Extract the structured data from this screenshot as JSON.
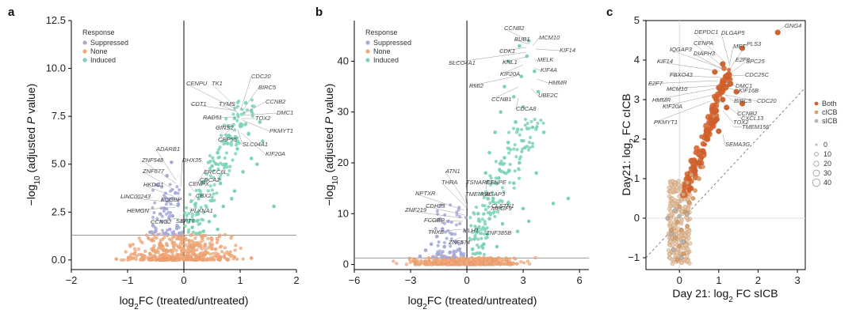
{
  "chart_data": [
    {
      "panel": "a",
      "type": "scatter",
      "xlabel": "log2FC (treated/untreated)",
      "ylabel": "−log10 (adjusted P value)",
      "xticks": [
        "−2",
        "−1",
        "0",
        "1",
        "2"
      ],
      "yticks": [
        "0.0",
        "2.5",
        "5.0",
        "7.5",
        "10.0",
        "12.5"
      ],
      "xlim": [
        -2,
        2
      ],
      "ylim": [
        -0.5,
        12.5
      ],
      "threshold_y": 1.3,
      "legend": {
        "title": "Response",
        "items": [
          {
            "label": "Suppressed",
            "color": "#a7a9d6"
          },
          {
            "label": "None",
            "color": "#f0a878"
          },
          {
            "label": "Induced",
            "color": "#7dd3b5"
          }
        ]
      },
      "series": [
        {
          "name": "Suppressed",
          "color": "#a7a9d6",
          "points": [
            [
              -0.22,
              5.1
            ],
            [
              -0.3,
              4.4
            ],
            [
              -0.45,
              3.9
            ],
            [
              -0.15,
              3.5
            ],
            [
              -0.28,
              3.1
            ],
            [
              -0.35,
              2.7
            ],
            [
              -0.2,
              2.3
            ],
            [
              -0.4,
              2.0
            ],
            [
              -0.12,
              1.8
            ],
            [
              -0.25,
              1.6
            ],
            [
              -0.5,
              1.5
            ],
            [
              -0.32,
              1.4
            ],
            [
              -0.18,
              1.35
            ],
            [
              -0.6,
              1.45
            ],
            [
              -0.08,
              1.4
            ],
            [
              -0.42,
              2.4
            ],
            [
              -0.1,
              2.9
            ],
            [
              -0.55,
              1.8
            ]
          ]
        },
        {
          "name": "Induced",
          "color": "#7dd3b5",
          "points": [
            [
              1.1,
              8.2
            ],
            [
              1.2,
              7.8
            ],
            [
              0.9,
              7.4
            ],
            [
              1.0,
              7.0
            ],
            [
              1.35,
              7.2
            ],
            [
              0.8,
              6.5
            ],
            [
              1.15,
              6.6
            ],
            [
              1.4,
              6.2
            ],
            [
              0.6,
              5.6
            ],
            [
              0.95,
              5.8
            ],
            [
              1.2,
              5.3
            ],
            [
              0.5,
              4.9
            ],
            [
              0.75,
              5.0
            ],
            [
              1.05,
              4.6
            ],
            [
              0.4,
              4.2
            ],
            [
              0.65,
              4.0
            ],
            [
              0.9,
              3.6
            ],
            [
              0.3,
              3.4
            ],
            [
              0.5,
              3.1
            ],
            [
              0.7,
              2.8
            ],
            [
              0.25,
              2.4
            ],
            [
              0.45,
              2.0
            ],
            [
              0.15,
              1.7
            ],
            [
              0.35,
              1.5
            ],
            [
              0.6,
              1.6
            ],
            [
              1.6,
              2.8
            ],
            [
              0.2,
              2.9
            ],
            [
              0.85,
              3.2
            ],
            [
              1.3,
              5.0
            ],
            [
              0.55,
              2.3
            ]
          ]
        },
        {
          "name": "None",
          "color": "#f0a878",
          "points": [
            [
              -0.6,
              0.3
            ],
            [
              -0.4,
              0.6
            ],
            [
              -0.2,
              0.9
            ],
            [
              0.0,
              0.5
            ],
            [
              0.2,
              0.8
            ],
            [
              0.4,
              0.4
            ],
            [
              0.6,
              0.2
            ],
            [
              -0.9,
              0.1
            ],
            [
              0.9,
              0.15
            ],
            [
              -0.3,
              0.2
            ],
            [
              0.1,
              1.0
            ],
            [
              -0.1,
              0.7
            ],
            [
              0.3,
              0.3
            ],
            [
              -0.5,
              0.4
            ],
            [
              0.5,
              0.6
            ],
            [
              0.8,
              0.3
            ],
            [
              -0.7,
              0.2
            ],
            [
              0.0,
              0.1
            ],
            [
              1.2,
              0.1
            ],
            [
              -1.2,
              0.05
            ]
          ]
        }
      ],
      "labels": {
        "suppressed": [
          "ADARB1",
          "ZNF548",
          "ZNF677",
          "HKDC1",
          "LINC00243",
          "HEMGN",
          "CCNG2",
          "FCGBP",
          "DHX35",
          "SEPT6"
        ],
        "induced": [
          "CENPU",
          "TK1",
          "CDC20",
          "BIRC5",
          "CDT1",
          "TYMS",
          "CCNB2",
          "DMC1",
          "RAD51",
          "TOX2",
          "PKMYT1",
          "GINS2",
          "CEP55",
          "SLC04A1",
          "KIF20A",
          "ERCC6L",
          "CBX2",
          "CENPX",
          "PLXNA1",
          "CDCA2"
        ]
      }
    },
    {
      "panel": "b",
      "type": "scatter",
      "xlabel": "log2FC (treated/untreated)",
      "ylabel": "−log10 (adjusted P value)",
      "xticks": [
        "−6",
        "−3",
        "0",
        "3",
        "6"
      ],
      "yticks": [
        "0",
        "10",
        "20",
        "30",
        "40"
      ],
      "xlim": [
        -6,
        6.5
      ],
      "ylim": [
        -1,
        48
      ],
      "threshold_y": 1.3,
      "legend": {
        "title": "Response",
        "items": [
          {
            "label": "Suppressed",
            "color": "#a7a9d6"
          },
          {
            "label": "None",
            "color": "#f0a878"
          },
          {
            "label": "Induced",
            "color": "#7dd3b5"
          }
        ]
      },
      "series": [
        {
          "name": "Suppressed",
          "color": "#a7a9d6",
          "points": [
            [
              -1.0,
              8.5
            ],
            [
              -1.3,
              7.0
            ],
            [
              -1.6,
              5.5
            ],
            [
              -0.8,
              6.0
            ],
            [
              -1.9,
              4.0
            ],
            [
              -1.2,
              3.5
            ],
            [
              -0.6,
              4.5
            ],
            [
              -2.2,
              2.8
            ],
            [
              -0.9,
              2.4
            ],
            [
              -1.5,
              2.0
            ],
            [
              -0.4,
              3.0
            ],
            [
              -2.5,
              1.6
            ],
            [
              -0.7,
              1.8
            ],
            [
              -1.8,
              1.5
            ],
            [
              -1.1,
              1.4
            ],
            [
              -0.3,
              2.0
            ]
          ]
        },
        {
          "name": "Induced",
          "color": "#7dd3b5",
          "points": [
            [
              3.3,
              44
            ],
            [
              2.8,
              43
            ],
            [
              3.2,
              41
            ],
            [
              2.2,
              40
            ],
            [
              3.6,
              38
            ],
            [
              2.9,
              37
            ],
            [
              2.0,
              35
            ],
            [
              3.8,
              34
            ],
            [
              2.5,
              33
            ],
            [
              3.0,
              31
            ],
            [
              1.8,
              30
            ],
            [
              2.6,
              28
            ],
            [
              3.5,
              27
            ],
            [
              1.5,
              26
            ],
            [
              2.2,
              24
            ],
            [
              3.1,
              23
            ],
            [
              1.2,
              22
            ],
            [
              2.0,
              21
            ],
            [
              2.8,
              20
            ],
            [
              1.0,
              18
            ],
            [
              1.7,
              17
            ],
            [
              2.5,
              16
            ],
            [
              3.7,
              18
            ],
            [
              0.8,
              14
            ],
            [
              1.4,
              13
            ],
            [
              2.2,
              12
            ],
            [
              3.0,
              11
            ],
            [
              0.6,
              10
            ],
            [
              1.2,
              9
            ],
            [
              1.9,
              8
            ],
            [
              0.5,
              7
            ],
            [
              1.1,
              6
            ],
            [
              2.7,
              6.5
            ],
            [
              0.4,
              5
            ],
            [
              0.9,
              4
            ],
            [
              1.6,
              3.5
            ],
            [
              0.3,
              3
            ],
            [
              0.7,
              2.2
            ],
            [
              4.6,
              12
            ],
            [
              5.4,
              13
            ],
            [
              4.1,
              26
            ],
            [
              3.3,
              8.5
            ]
          ]
        },
        {
          "name": "None",
          "color": "#f0a878",
          "points": [
            [
              -1.5,
              0.4
            ],
            [
              -1.0,
              0.8
            ],
            [
              -0.5,
              1.0
            ],
            [
              0.0,
              0.6
            ],
            [
              0.5,
              0.9
            ],
            [
              1.0,
              0.4
            ],
            [
              1.5,
              0.2
            ],
            [
              -2.0,
              0.1
            ],
            [
              2.0,
              0.1
            ],
            [
              -0.8,
              0.3
            ],
            [
              0.3,
              1.2
            ],
            [
              -0.3,
              0.2
            ],
            [
              0.8,
              1.1
            ],
            [
              -1.2,
              0.6
            ],
            [
              1.2,
              0.7
            ],
            [
              0.0,
              0.05
            ],
            [
              -0.2,
              1.1
            ],
            [
              0.6,
              0.3
            ]
          ]
        }
      ],
      "labels": {
        "suppressed": [
          "ATN1",
          "THRA",
          "TSNARE1",
          "NPTXR",
          "TMEM8B",
          "CDH23",
          "ZNF219",
          "FCGBP",
          "TNXB",
          "ZNF574",
          "MLH1"
        ],
        "induced": [
          "CCNB2",
          "BUB1",
          "MCM10",
          "CDK1",
          "KIF14",
          "SLCO4A1",
          "KNL1",
          "MELK",
          "KIF20A",
          "KIF4A",
          "RMI2",
          "HMMR",
          "CCNB1",
          "UBE2C",
          "CDCA8",
          "AGAP3",
          "CENPE",
          "MEGF9",
          "CLSTN1",
          "ZNF385B"
        ]
      }
    },
    {
      "panel": "c",
      "type": "scatter",
      "xlabel": "Day 21: log2 FC sICB",
      "ylabel": "Day21: log2 FC cICB",
      "xticks": [
        "0",
        "1",
        "2",
        "3"
      ],
      "yticks": [
        "−1",
        "0",
        "1",
        "2",
        "3",
        "4",
        "5"
      ],
      "xlim": [
        -0.85,
        3.2
      ],
      "ylim": [
        -1.3,
        5.0
      ],
      "legend_groups": [
        {
          "label": "Both",
          "color": "#d2602a"
        },
        {
          "label": "cICB",
          "color": "#d9a06f"
        },
        {
          "label": "sICB",
          "color": "#b5b5b5"
        }
      ],
      "legend_sizes": [
        "0",
        "10",
        "20",
        "30",
        "40"
      ],
      "series": [
        {
          "name": "Both",
          "color": "#d2602a",
          "points": [
            [
              2.5,
              4.7
            ],
            [
              1.6,
              4.3
            ],
            [
              1.2,
              3.6
            ],
            [
              1.0,
              3.3
            ],
            [
              1.1,
              3.0
            ],
            [
              0.9,
              2.7
            ],
            [
              0.8,
              2.4
            ],
            [
              1.0,
              2.2
            ],
            [
              0.7,
              2.0
            ],
            [
              0.6,
              1.7
            ],
            [
              0.5,
              1.4
            ],
            [
              1.6,
              2.9
            ],
            [
              1.3,
              3.4
            ],
            [
              0.9,
              3.7
            ],
            [
              1.1,
              3.9
            ],
            [
              1.2,
              2.8
            ],
            [
              0.95,
              2.5
            ],
            [
              0.4,
              1.2
            ],
            [
              1.45,
              3.2
            ]
          ]
        },
        {
          "name": "cICB",
          "color": "#d9a06f",
          "points": [
            [
              0.3,
              1.1
            ],
            [
              0.2,
              0.9
            ],
            [
              0.4,
              0.7
            ],
            [
              0.1,
              0.6
            ],
            [
              0.25,
              0.4
            ],
            [
              0.0,
              0.3
            ],
            [
              0.15,
              0.15
            ],
            [
              -0.05,
              -0.1
            ],
            [
              0.05,
              -0.3
            ],
            [
              -0.1,
              -0.5
            ],
            [
              0.0,
              -0.7
            ],
            [
              0.1,
              -0.9
            ],
            [
              -0.05,
              -1.05
            ],
            [
              0.2,
              -0.2
            ],
            [
              -0.2,
              -0.3
            ],
            [
              0.35,
              0.5
            ],
            [
              0.5,
              1.0
            ],
            [
              0.6,
              1.3
            ]
          ]
        },
        {
          "name": "sICB",
          "color": "#b5b5b5",
          "points": [
            [
              -0.3,
              0.0
            ],
            [
              -0.2,
              -0.4
            ],
            [
              0.0,
              0.05
            ],
            [
              0.1,
              -0.6
            ],
            [
              -0.15,
              -0.8
            ],
            [
              0.05,
              -1.0
            ],
            [
              0.2,
              0.1
            ],
            [
              -0.1,
              0.2
            ]
          ]
        }
      ],
      "labels": [
        "GNG4",
        "DEPDC1",
        "DLGAP5",
        "PLS3",
        "CENPA",
        "MET",
        "IQGAP3",
        "DIAPH3",
        "E2F8",
        "KIF14",
        "SPC25",
        "CDC25C",
        "FBXO43",
        "E2F7",
        "DMC1",
        "MCM10",
        "KIF16B",
        "HMMR",
        "BIRC5",
        "CDC20",
        "KIF20A",
        "CCNB2",
        "PKMYT1",
        "TOX2",
        "CXCL13",
        "TMEM156",
        "SEMA3G"
      ]
    }
  ]
}
